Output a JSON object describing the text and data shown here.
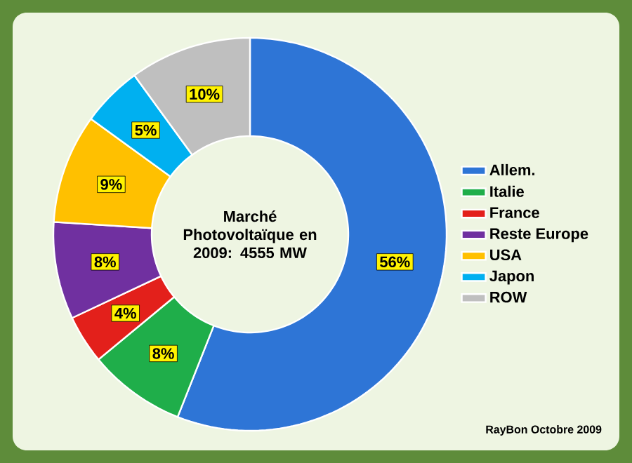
{
  "chart_data": {
    "type": "donut",
    "title": "Marché Photovoltaïque en 2009: 4555 MW",
    "categories": [
      "Allem.",
      "Italie",
      "France",
      "Reste Europe",
      "USA",
      "Japon",
      "ROW"
    ],
    "values": [
      56,
      8,
      4,
      8,
      9,
      5,
      10
    ],
    "colors": [
      "#2e75d6",
      "#1fae4a",
      "#e3201b",
      "#7030a0",
      "#ffc000",
      "#00b0f0",
      "#bfbfbf"
    ],
    "value_labels": [
      "56%",
      "8%",
      "4%",
      "8%",
      "9%",
      "5%",
      "10%"
    ],
    "legend": "right",
    "annotations": [
      "RayBon Octobre 2009"
    ]
  }
}
